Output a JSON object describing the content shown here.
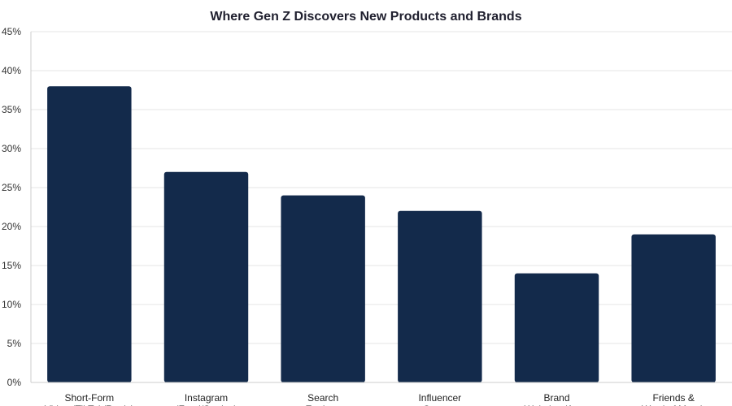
{
  "chart_data": {
    "type": "bar",
    "title": "Where Gen Z Discovers New Products and Brands",
    "xlabel": "",
    "ylabel": "",
    "categories": [
      [
        "Short-Form",
        "Video (TikTok/Reels)"
      ],
      [
        "Instagram",
        "(Feed/Stories)"
      ],
      [
        "Search",
        "Engines"
      ],
      [
        "Influencer",
        "Content"
      ],
      [
        "Brand",
        "Websites/Apps"
      ],
      [
        "Friends &",
        "Word of Mouth"
      ]
    ],
    "values": [
      38,
      27,
      24,
      22,
      14,
      19
    ],
    "ylim": [
      0,
      45
    ],
    "yticks": [
      0,
      5,
      10,
      15,
      20,
      25,
      30,
      35,
      40,
      45
    ],
    "ytick_suffix": "%",
    "grid": true,
    "legend": "none",
    "bar_color": "#132a4b"
  }
}
